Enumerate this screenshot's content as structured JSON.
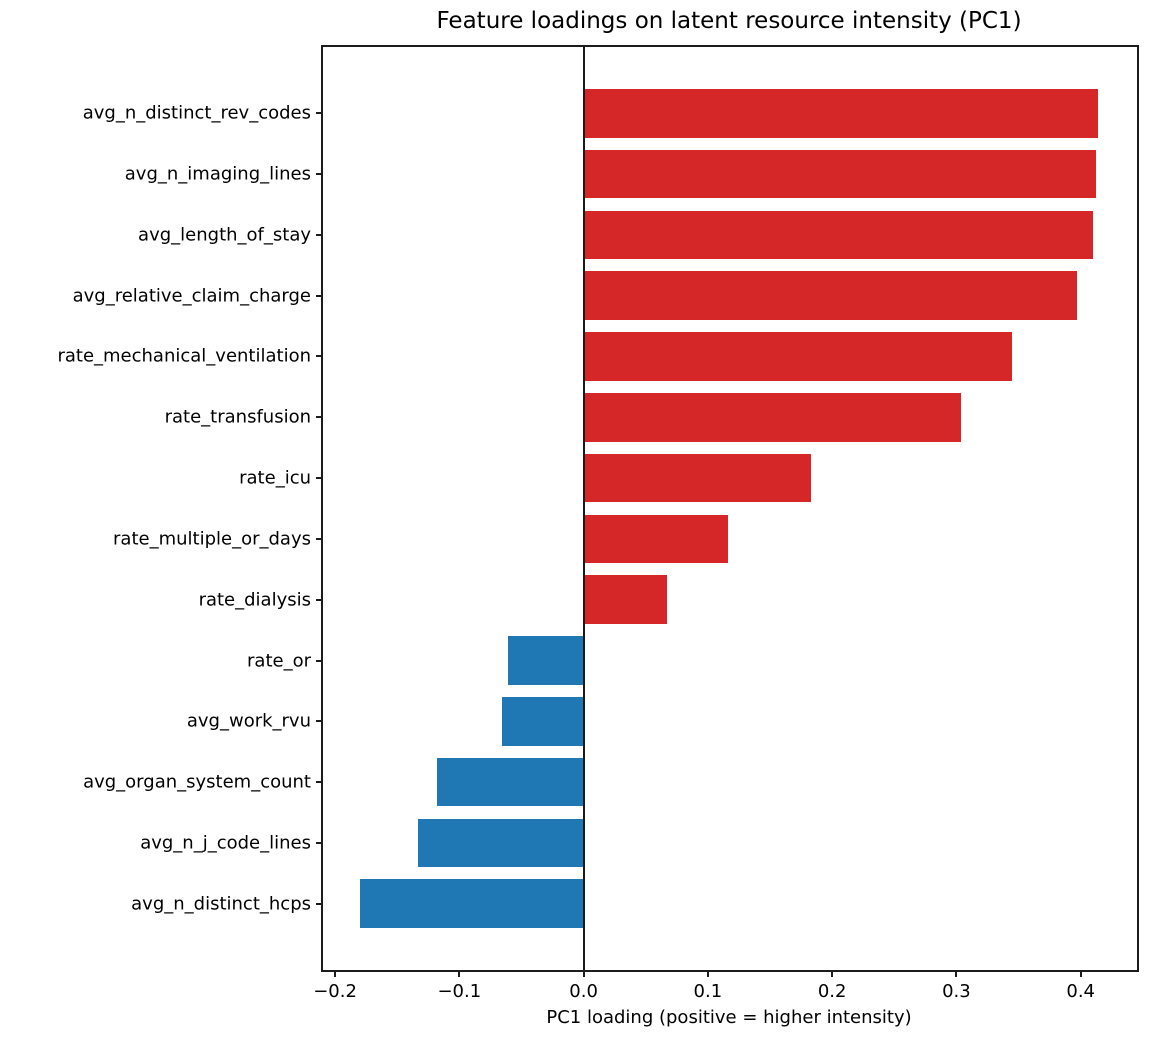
{
  "chart_data": {
    "type": "bar",
    "orientation": "horizontal",
    "title": "Feature loadings on latent resource intensity (PC1)",
    "xlabel": "PC1 loading (positive = higher intensity)",
    "categories": [
      "avg_n_distinct_rev_codes",
      "avg_n_imaging_lines",
      "avg_length_of_stay",
      "avg_relative_claim_charge",
      "rate_mechanical_ventilation",
      "rate_transfusion",
      "rate_icu",
      "rate_multiple_or_days",
      "rate_dialysis",
      "rate_or",
      "avg_work_rvu",
      "avg_organ_system_count",
      "avg_n_j_code_lines",
      "avg_n_distinct_hcps"
    ],
    "values": [
      0.414,
      0.412,
      0.41,
      0.397,
      0.345,
      0.304,
      0.183,
      0.116,
      0.067,
      -0.061,
      -0.066,
      -0.118,
      -0.133,
      -0.18
    ],
    "xlim": [
      -0.2097,
      0.4437
    ],
    "xticks": [
      {
        "value": -0.2,
        "label": "−0.2"
      },
      {
        "value": -0.1,
        "label": "−0.1"
      },
      {
        "value": 0.0,
        "label": "0.0"
      },
      {
        "value": 0.1,
        "label": "0.1"
      },
      {
        "value": 0.2,
        "label": "0.2"
      },
      {
        "value": 0.3,
        "label": "0.3"
      },
      {
        "value": 0.4,
        "label": "0.4"
      }
    ],
    "positive_color": "#d62728",
    "negative_color": "#1f77b4",
    "grid": false,
    "legend": null
  }
}
